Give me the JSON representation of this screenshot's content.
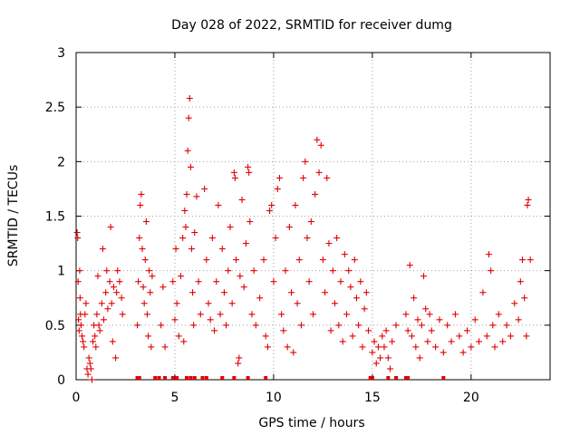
{
  "chart_data": {
    "type": "scatter",
    "title": "Day 028 of 2022, SRMTID for receiver dumg",
    "xlabel": "GPS time / hours",
    "ylabel": "SRMTID / TECUs",
    "xlim": [
      0,
      24
    ],
    "ylim": [
      0,
      3
    ],
    "xticks": [
      "0",
      "5",
      "10",
      "15",
      "20"
    ],
    "yticks": [
      "0",
      "0.5",
      "1",
      "1.5",
      "2",
      "2.5",
      "3"
    ],
    "grid": true,
    "marker": "plus",
    "color": "#e00000",
    "series": [
      {
        "name": "",
        "points": [
          [
            0.05,
            1.35
          ],
          [
            0.08,
            1.3
          ],
          [
            0.1,
            0.9
          ],
          [
            0.12,
            0.55
          ],
          [
            0.15,
            0.45
          ],
          [
            0.18,
            1.0
          ],
          [
            0.2,
            0.75
          ],
          [
            0.22,
            0.6
          ],
          [
            0.25,
            0.5
          ],
          [
            0.3,
            0.4
          ],
          [
            0.35,
            0.35
          ],
          [
            0.4,
            0.3
          ],
          [
            0.45,
            0.6
          ],
          [
            0.5,
            0.7
          ],
          [
            0.55,
            0.1
          ],
          [
            0.6,
            0.05
          ],
          [
            0.65,
            0.2
          ],
          [
            0.7,
            0.15
          ],
          [
            0.75,
            0.1
          ],
          [
            0.8,
            0.0
          ],
          [
            0.85,
            0.35
          ],
          [
            0.9,
            0.5
          ],
          [
            0.95,
            0.4
          ],
          [
            1.0,
            0.3
          ],
          [
            1.05,
            0.6
          ],
          [
            1.1,
            0.95
          ],
          [
            1.15,
            0.5
          ],
          [
            1.2,
            0.45
          ],
          [
            1.3,
            0.7
          ],
          [
            1.35,
            1.2
          ],
          [
            1.4,
            0.55
          ],
          [
            1.5,
            0.8
          ],
          [
            1.55,
            1.0
          ],
          [
            1.6,
            0.65
          ],
          [
            1.7,
            0.9
          ],
          [
            1.75,
            1.4
          ],
          [
            1.8,
            0.7
          ],
          [
            1.85,
            0.35
          ],
          [
            1.9,
            0.85
          ],
          [
            2.0,
            0.2
          ],
          [
            2.05,
            0.8
          ],
          [
            2.1,
            1.0
          ],
          [
            2.2,
            0.9
          ],
          [
            2.3,
            0.75
          ],
          [
            2.35,
            0.6
          ],
          [
            3.1,
            0.5
          ],
          [
            3.15,
            0.9
          ],
          [
            3.2,
            1.3
          ],
          [
            3.25,
            1.6
          ],
          [
            3.3,
            1.7
          ],
          [
            3.35,
            1.2
          ],
          [
            3.4,
            0.85
          ],
          [
            3.45,
            0.7
          ],
          [
            3.5,
            1.1
          ],
          [
            3.55,
            1.45
          ],
          [
            3.6,
            0.6
          ],
          [
            3.65,
            0.4
          ],
          [
            3.7,
            1.0
          ],
          [
            3.75,
            0.8
          ],
          [
            3.8,
            0.3
          ],
          [
            3.85,
            0.95
          ],
          [
            4.3,
            0.5
          ],
          [
            4.4,
            0.85
          ],
          [
            4.5,
            0.3
          ],
          [
            4.9,
            0.9
          ],
          [
            5.0,
            0.55
          ],
          [
            5.05,
            1.2
          ],
          [
            5.1,
            0.7
          ],
          [
            5.2,
            0.4
          ],
          [
            5.3,
            0.95
          ],
          [
            5.4,
            1.3
          ],
          [
            5.45,
            0.35
          ],
          [
            5.5,
            1.55
          ],
          [
            5.55,
            1.4
          ],
          [
            5.6,
            1.7
          ],
          [
            5.65,
            2.1
          ],
          [
            5.7,
            2.4
          ],
          [
            5.75,
            2.58
          ],
          [
            5.8,
            1.95
          ],
          [
            5.85,
            1.2
          ],
          [
            5.9,
            0.8
          ],
          [
            5.95,
            0.5
          ],
          [
            6.0,
            1.35
          ],
          [
            6.1,
            1.68
          ],
          [
            6.2,
            0.9
          ],
          [
            6.3,
            0.6
          ],
          [
            6.5,
            1.75
          ],
          [
            6.6,
            1.1
          ],
          [
            6.7,
            0.7
          ],
          [
            6.8,
            0.55
          ],
          [
            6.9,
            1.3
          ],
          [
            7.0,
            0.45
          ],
          [
            7.1,
            0.9
          ],
          [
            7.2,
            1.6
          ],
          [
            7.3,
            0.6
          ],
          [
            7.4,
            1.2
          ],
          [
            7.5,
            0.8
          ],
          [
            7.6,
            0.5
          ],
          [
            7.7,
            1.0
          ],
          [
            7.8,
            1.4
          ],
          [
            7.9,
            0.7
          ],
          [
            8.0,
            1.9
          ],
          [
            8.05,
            1.85
          ],
          [
            8.1,
            1.1
          ],
          [
            8.2,
            0.15
          ],
          [
            8.25,
            0.2
          ],
          [
            8.3,
            0.95
          ],
          [
            8.4,
            1.65
          ],
          [
            8.5,
            0.85
          ],
          [
            8.6,
            1.25
          ],
          [
            8.7,
            1.95
          ],
          [
            8.75,
            1.9
          ],
          [
            8.8,
            1.45
          ],
          [
            8.9,
            0.6
          ],
          [
            9.0,
            1.0
          ],
          [
            9.1,
            0.5
          ],
          [
            9.3,
            0.75
          ],
          [
            9.5,
            1.1
          ],
          [
            9.6,
            0.4
          ],
          [
            9.7,
            0.3
          ],
          [
            9.8,
            1.55
          ],
          [
            9.9,
            1.6
          ],
          [
            10.0,
            0.9
          ],
          [
            10.1,
            1.3
          ],
          [
            10.2,
            1.75
          ],
          [
            10.3,
            1.85
          ],
          [
            10.4,
            0.6
          ],
          [
            10.5,
            0.45
          ],
          [
            10.6,
            1.0
          ],
          [
            10.7,
            0.3
          ],
          [
            10.8,
            1.4
          ],
          [
            10.9,
            0.8
          ],
          [
            11.0,
            0.25
          ],
          [
            11.1,
            1.6
          ],
          [
            11.2,
            0.7
          ],
          [
            11.3,
            1.1
          ],
          [
            11.4,
            0.5
          ],
          [
            11.5,
            1.85
          ],
          [
            11.6,
            2.0
          ],
          [
            11.7,
            1.3
          ],
          [
            11.8,
            0.9
          ],
          [
            11.9,
            1.45
          ],
          [
            12.0,
            0.6
          ],
          [
            12.1,
            1.7
          ],
          [
            12.2,
            2.2
          ],
          [
            12.3,
            1.9
          ],
          [
            12.4,
            2.15
          ],
          [
            12.5,
            1.1
          ],
          [
            12.6,
            0.8
          ],
          [
            12.7,
            1.85
          ],
          [
            12.8,
            1.25
          ],
          [
            12.9,
            0.45
          ],
          [
            13.0,
            1.0
          ],
          [
            13.1,
            0.7
          ],
          [
            13.2,
            1.3
          ],
          [
            13.3,
            0.5
          ],
          [
            13.4,
            0.9
          ],
          [
            13.5,
            0.35
          ],
          [
            13.6,
            1.15
          ],
          [
            13.7,
            0.6
          ],
          [
            13.8,
            1.0
          ],
          [
            13.9,
            0.85
          ],
          [
            14.0,
            0.4
          ],
          [
            14.1,
            1.1
          ],
          [
            14.2,
            0.75
          ],
          [
            14.3,
            0.5
          ],
          [
            14.4,
            0.9
          ],
          [
            14.5,
            0.3
          ],
          [
            14.6,
            0.65
          ],
          [
            14.7,
            0.8
          ],
          [
            14.8,
            0.45
          ],
          [
            15.0,
            0.25
          ],
          [
            15.1,
            0.35
          ],
          [
            15.2,
            0.15
          ],
          [
            15.3,
            0.3
          ],
          [
            15.4,
            0.2
          ],
          [
            15.5,
            0.4
          ],
          [
            15.6,
            0.3
          ],
          [
            15.7,
            0.45
          ],
          [
            15.8,
            0.2
          ],
          [
            15.9,
            0.1
          ],
          [
            16.0,
            0.35
          ],
          [
            16.2,
            0.5
          ],
          [
            16.7,
            0.6
          ],
          [
            16.8,
            0.45
          ],
          [
            16.9,
            1.05
          ],
          [
            17.0,
            0.4
          ],
          [
            17.1,
            0.75
          ],
          [
            17.2,
            0.3
          ],
          [
            17.3,
            0.55
          ],
          [
            17.4,
            0.2
          ],
          [
            17.5,
            0.5
          ],
          [
            17.6,
            0.95
          ],
          [
            17.7,
            0.65
          ],
          [
            17.8,
            0.35
          ],
          [
            17.9,
            0.6
          ],
          [
            18.0,
            0.45
          ],
          [
            18.2,
            0.3
          ],
          [
            18.4,
            0.55
          ],
          [
            18.6,
            0.25
          ],
          [
            18.8,
            0.5
          ],
          [
            19.0,
            0.35
          ],
          [
            19.2,
            0.6
          ],
          [
            19.4,
            0.4
          ],
          [
            19.6,
            0.25
          ],
          [
            19.8,
            0.45
          ],
          [
            20.0,
            0.3
          ],
          [
            20.2,
            0.55
          ],
          [
            20.4,
            0.35
          ],
          [
            20.6,
            0.8
          ],
          [
            20.8,
            0.4
          ],
          [
            20.9,
            1.15
          ],
          [
            21.0,
            1.0
          ],
          [
            21.1,
            0.5
          ],
          [
            21.2,
            0.3
          ],
          [
            21.4,
            0.6
          ],
          [
            21.6,
            0.35
          ],
          [
            21.8,
            0.5
          ],
          [
            22.0,
            0.4
          ],
          [
            22.2,
            0.7
          ],
          [
            22.4,
            0.55
          ],
          [
            22.5,
            0.9
          ],
          [
            22.6,
            1.1
          ],
          [
            22.7,
            0.75
          ],
          [
            22.8,
            0.4
          ],
          [
            22.85,
            1.6
          ],
          [
            22.9,
            1.65
          ],
          [
            23.0,
            1.1
          ]
        ]
      }
    ],
    "baseline_points": [
      [
        3.1,
        0
      ],
      [
        3.2,
        0
      ],
      [
        4.0,
        0
      ],
      [
        4.2,
        0
      ],
      [
        4.5,
        0
      ],
      [
        4.9,
        0
      ],
      [
        5.1,
        0
      ],
      [
        5.6,
        0
      ],
      [
        5.8,
        0
      ],
      [
        6.0,
        0
      ],
      [
        6.4,
        0
      ],
      [
        6.6,
        0
      ],
      [
        7.4,
        0
      ],
      [
        8.0,
        0
      ],
      [
        8.7,
        0
      ],
      [
        9.6,
        0
      ],
      [
        14.9,
        0
      ],
      [
        15.0,
        0
      ],
      [
        15.8,
        0
      ],
      [
        16.2,
        0
      ],
      [
        16.7,
        0
      ],
      [
        16.8,
        0
      ],
      [
        18.6,
        0
      ]
    ]
  }
}
